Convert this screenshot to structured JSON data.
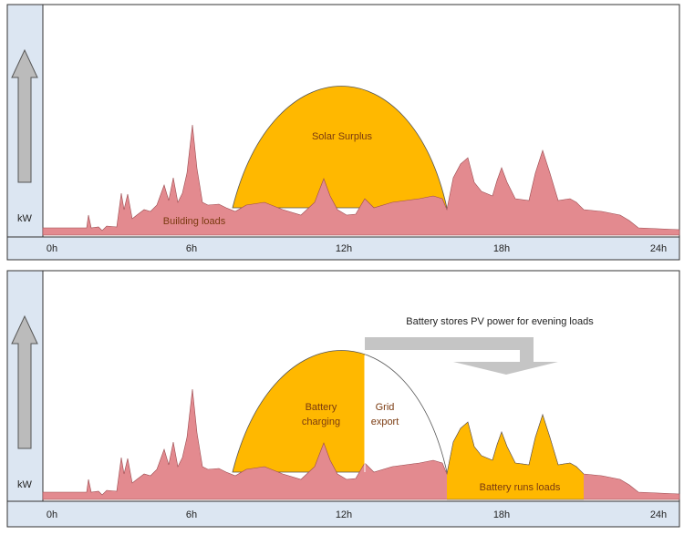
{
  "panels": [
    {
      "axis_unit": "kW",
      "x_labels": [
        "0h",
        "6h",
        "12h",
        "18h",
        "24h"
      ],
      "labels": {
        "solar_surplus": "Solar Surplus",
        "building_loads": "Building loads"
      }
    },
    {
      "axis_unit": "kW",
      "x_labels": [
        "0h",
        "6h",
        "12h",
        "18h",
        "24h"
      ],
      "annotation": "Battery stores PV power for evening loads",
      "labels": {
        "battery_charging": [
          "Battery",
          "charging"
        ],
        "grid_export": [
          "Grid",
          "export"
        ],
        "battery_runs_loads": "Battery runs loads"
      }
    }
  ]
}
